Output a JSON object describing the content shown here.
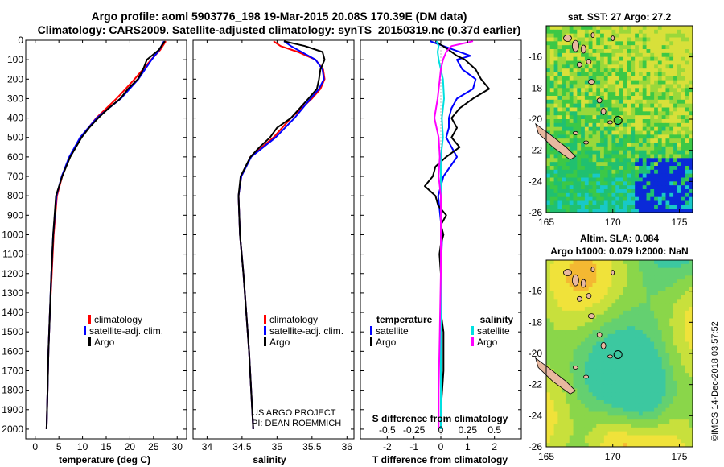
{
  "title_line1": "Argo profile: aoml 5903776_198 19-Mar-2015 20.08S 170.39E (DM data)",
  "title_line2": "Climatology: CARS2009. Satellite-adjusted climatology: synTS_20150319.nc (0.37d earlier)",
  "watermark": "©IMOS 14-Dec-2018 03:57:52",
  "credit_line1": "US ARGO PROJECT",
  "credit_line2": "PI: DEAN ROEMMICH",
  "colors": {
    "climatology": "#ff0000",
    "satellite": "#0000ff",
    "argo": "#000000",
    "sal_satellite": "#00e0e0",
    "sal_argo": "#ff00ff"
  },
  "chart_data": [
    {
      "type": "line",
      "name": "temperature",
      "xlabel": "temperature (deg C)",
      "ylabel": "",
      "xlim": [
        -2,
        32
      ],
      "ylim": [
        0,
        2050
      ],
      "xticks": [
        0,
        5,
        10,
        15,
        20,
        25,
        30
      ],
      "yticks": [
        0,
        100,
        200,
        300,
        400,
        500,
        600,
        700,
        800,
        900,
        1000,
        1100,
        1200,
        1300,
        1400,
        1500,
        1600,
        1700,
        1800,
        1900,
        2000
      ],
      "legend": [
        {
          "label": "climatology",
          "color": "#ff0000"
        },
        {
          "label": "satellite-adj. clim.",
          "color": "#0000ff"
        },
        {
          "label": "Argo",
          "color": "#000000"
        }
      ],
      "series": [
        {
          "name": "climatology",
          "color": "#ff0000",
          "depth": [
            5,
            50,
            100,
            200,
            300,
            400,
            500,
            600,
            700,
            800,
            1000,
            1200,
            1400,
            1600,
            1800,
            2000
          ],
          "values": [
            27.6,
            26.4,
            24.5,
            21,
            17.2,
            12.9,
            9.6,
            7.3,
            5.7,
            4.6,
            3.9,
            3.5,
            3.1,
            2.8,
            2.6,
            2.4
          ]
        },
        {
          "name": "satellite-adj. clim.",
          "color": "#0000ff",
          "depth": [
            5,
            50,
            100,
            200,
            300,
            400,
            500,
            600,
            700,
            800,
            1000,
            1200,
            1400,
            1600,
            1800,
            2000
          ],
          "values": [
            27.2,
            26.2,
            24.6,
            21.8,
            18.1,
            13,
            9.5,
            7.2,
            5.6,
            4.5,
            3.8,
            3.4,
            3.1,
            2.8,
            2.6,
            2.4
          ]
        },
        {
          "name": "Argo",
          "color": "#000000",
          "depth": [
            5,
            50,
            100,
            150,
            200,
            250,
            300,
            350,
            400,
            450,
            500,
            600,
            700,
            800,
            1000,
            1200,
            1400,
            1600,
            1800,
            2000
          ],
          "values": [
            27.4,
            26.1,
            23.6,
            22.8,
            21.7,
            19.6,
            18,
            15.5,
            13.3,
            11.4,
            9.8,
            7.4,
            5.7,
            4.4,
            3.8,
            3.4,
            3.1,
            2.8,
            2.6,
            2.4
          ]
        }
      ]
    },
    {
      "type": "line",
      "name": "salinity",
      "xlabel": "salinity",
      "ylabel": "",
      "xlim": [
        33.8,
        36.1
      ],
      "ylim": [
        0,
        2050
      ],
      "xticks": [
        34,
        34.5,
        35,
        35.5,
        36
      ],
      "xticklabels": [
        "34",
        "34.5",
        "35",
        "35.5",
        "36"
      ],
      "legend": [
        {
          "label": "climatology",
          "color": "#ff0000"
        },
        {
          "label": "satellite-adj. clim.",
          "color": "#0000ff"
        },
        {
          "label": "Argo",
          "color": "#000000"
        }
      ],
      "series": [
        {
          "name": "climatology",
          "color": "#ff0000",
          "depth": [
            5,
            30,
            60,
            100,
            150,
            200,
            250,
            300,
            400,
            500,
            600,
            700,
            800,
            1000,
            1200,
            1400,
            1600,
            1800,
            2000
          ],
          "values": [
            34.95,
            35.05,
            35.3,
            35.55,
            35.66,
            35.68,
            35.62,
            35.5,
            35.2,
            34.95,
            34.62,
            34.49,
            34.45,
            34.47,
            34.52,
            34.56,
            34.6,
            34.63,
            34.66
          ]
        },
        {
          "name": "satellite-adj. clim.",
          "color": "#0000ff",
          "depth": [
            5,
            30,
            60,
            100,
            150,
            200,
            250,
            300,
            400,
            500,
            600,
            700,
            800,
            1000,
            1200,
            1400,
            1600,
            1800,
            2000
          ],
          "values": [
            35.1,
            35.2,
            35.35,
            35.55,
            35.65,
            35.67,
            35.6,
            35.48,
            35.25,
            34.98,
            34.63,
            34.49,
            34.45,
            34.47,
            34.52,
            34.56,
            34.6,
            34.63,
            34.66
          ]
        },
        {
          "name": "Argo",
          "color": "#000000",
          "depth": [
            5,
            30,
            60,
            100,
            150,
            200,
            250,
            300,
            400,
            450,
            500,
            550,
            600,
            700,
            800,
            1000,
            1200,
            1400,
            1600,
            1800,
            2000
          ],
          "values": [
            35.1,
            35.4,
            35.65,
            35.68,
            35.62,
            35.6,
            35.57,
            35.45,
            35.2,
            35.0,
            34.9,
            34.75,
            34.62,
            34.48,
            34.45,
            34.47,
            34.52,
            34.56,
            34.6,
            34.63,
            34.66
          ]
        }
      ]
    },
    {
      "type": "line",
      "name": "difference",
      "xlabel": "T difference from climatology",
      "xlabel2": "S difference from climatology",
      "xlim": [
        -3,
        3
      ],
      "ylim": [
        0,
        2050
      ],
      "xticks": [
        -2,
        -1,
        0,
        1,
        2
      ],
      "s_ticks": [
        -0.5,
        -0.25,
        0,
        0.25,
        0.5
      ],
      "s_ticklabels": [
        "-0.5",
        "-0.25",
        "0",
        "0.25",
        "0.5"
      ],
      "legend_temp_title": "temperature",
      "legend_sal_title": "salinity",
      "legend": [
        {
          "label": "satellite",
          "color": "#0000ff",
          "side": "temperature"
        },
        {
          "label": "Argo",
          "color": "#000000",
          "side": "temperature"
        },
        {
          "label": "satellite",
          "color": "#00e0e0",
          "side": "salinity"
        },
        {
          "label": "Argo",
          "color": "#ff00ff",
          "side": "salinity"
        }
      ],
      "series": [
        {
          "name": "T satellite",
          "color": "#0000ff",
          "depth": [
            5,
            50,
            80,
            100,
            150,
            200,
            250,
            300,
            350,
            400,
            450,
            500,
            600,
            700,
            800,
            1000,
            1200,
            1500,
            1800,
            2000
          ],
          "values": [
            -0.4,
            0.5,
            1.1,
            0.6,
            0.8,
            1.3,
            1.2,
            0.6,
            0.4,
            0.3,
            0.3,
            0.2,
            0.6,
            0.1,
            -0.1,
            0.05,
            0,
            0,
            0,
            0
          ]
        },
        {
          "name": "T Argo",
          "color": "#000000",
          "depth": [
            5,
            50,
            80,
            100,
            150,
            200,
            250,
            300,
            350,
            400,
            450,
            500,
            550,
            600,
            650,
            700,
            750,
            800,
            850,
            900,
            950,
            1000,
            1050,
            1100,
            1200,
            1300,
            1400,
            1500,
            1600,
            1700,
            1800,
            1900,
            2000
          ],
          "values": [
            -0.2,
            0.3,
            0.6,
            0.9,
            1.3,
            1.5,
            1.8,
            1.2,
            0.7,
            0.4,
            0.6,
            0.4,
            0.7,
            0.2,
            -0.2,
            -0.3,
            -0.6,
            -0.2,
            -0.1,
            0.2,
            0,
            0.1,
            0,
            -0.05,
            0,
            0,
            0,
            0.1,
            0.1,
            0.1,
            0.05,
            0,
            0
          ]
        },
        {
          "name": "S satellite",
          "color": "#00e0e0",
          "depth": [
            5,
            30,
            60,
            100,
            150,
            200,
            300,
            400,
            500,
            600,
            700,
            800,
            1000,
            1200,
            1500,
            1800,
            2000
          ],
          "values": [
            -0.04,
            -0.02,
            -0.03,
            -0.02,
            0,
            0.02,
            0.03,
            0.01,
            0.02,
            0.0,
            0,
            0,
            0,
            0,
            0,
            0,
            0
          ]
        },
        {
          "name": "S Argo",
          "color": "#ff00ff",
          "depth": [
            5,
            30,
            60,
            100,
            150,
            200,
            300,
            400,
            500,
            600,
            700,
            800,
            1000,
            1200,
            1500,
            1800,
            2000
          ],
          "values": [
            0.3,
            0.1,
            0.05,
            0.02,
            0,
            -0.01,
            -0.03,
            -0.06,
            -0.02,
            -0.01,
            -0.02,
            0,
            0,
            0,
            -0.01,
            -0.02,
            -0.02
          ]
        }
      ]
    },
    {
      "type": "heatmap",
      "name": "sst-map",
      "title": "sat. SST: 27 Argo: 27.2",
      "xlim": [
        165,
        176
      ],
      "ylim": [
        -26,
        -14
      ],
      "xticks": [
        165,
        170,
        175
      ],
      "yticks": [
        -16,
        -18,
        -20,
        -22,
        -24,
        -26
      ],
      "argo_position": [
        170.39,
        -20.08
      ]
    },
    {
      "type": "heatmap",
      "name": "sla-map",
      "title_line1": "Altim. SLA: 0.084",
      "title_line2": "Argo h1000: 0.079 h2000: NaN",
      "xlim": [
        165,
        176
      ],
      "ylim": [
        -26,
        -14
      ],
      "xticks": [
        165,
        170,
        175
      ],
      "yticks": [
        -16,
        -18,
        -20,
        -22,
        -24,
        -26
      ],
      "argo_position": [
        170.39,
        -20.08
      ]
    }
  ]
}
